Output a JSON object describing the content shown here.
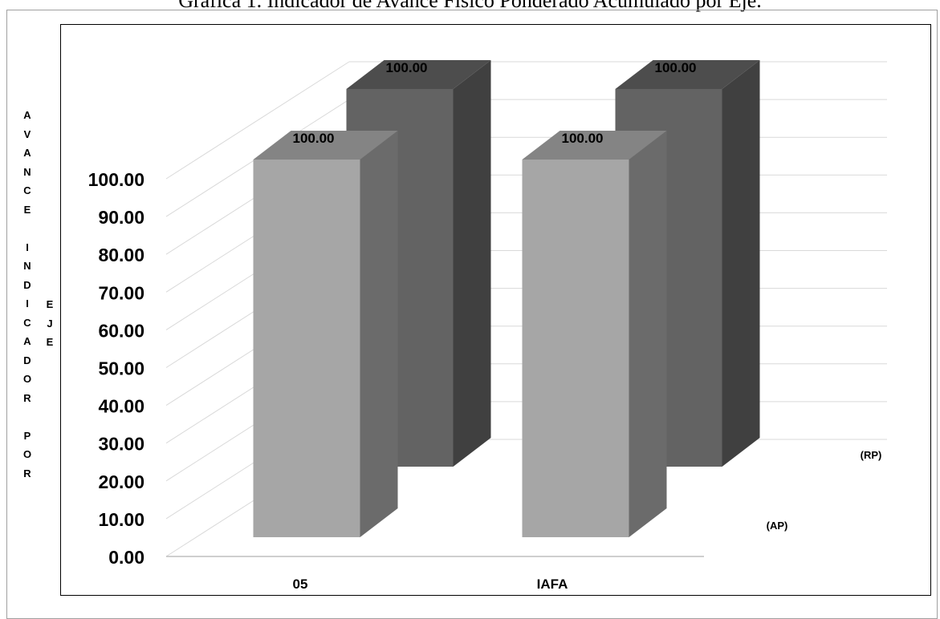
{
  "title": "Gráfica 1. Indicador de Avance Físico Ponderado Acumulado por Eje.",
  "y_axis_label": "AVANCE INDICADOR POR",
  "z_axis_label": "EJE",
  "colors": {
    "ap_front": "#a6a6a6",
    "ap_side": "#6b6b6b",
    "ap_top": "#848484",
    "rp_front": "#636363",
    "rp_side": "#404040",
    "rp_top": "#4d4d4d",
    "grid": "#d9d9d9"
  },
  "chart_data": {
    "type": "bar",
    "subtype": "3d-clustered",
    "title": "Gráfica 1. Indicador de Avance Físico Ponderado Acumulado por Eje.",
    "categories": [
      "05",
      "IAFA"
    ],
    "series": [
      {
        "name": "(AP)",
        "values": [
          100.0,
          100.0
        ]
      },
      {
        "name": "(RP)",
        "values": [
          100.0,
          100.0
        ]
      }
    ],
    "data_labels": [
      [
        "100.00",
        "100.00"
      ],
      [
        "100.00",
        "100.00"
      ]
    ],
    "yticks": [
      "0.00",
      "10.00",
      "20.00",
      "30.00",
      "40.00",
      "50.00",
      "60.00",
      "70.00",
      "80.00",
      "90.00",
      "100.00"
    ],
    "ylim": [
      0,
      100
    ],
    "ylabel": "AVANCE INDICADOR POR",
    "zlabel": "EJE",
    "grid": true
  }
}
